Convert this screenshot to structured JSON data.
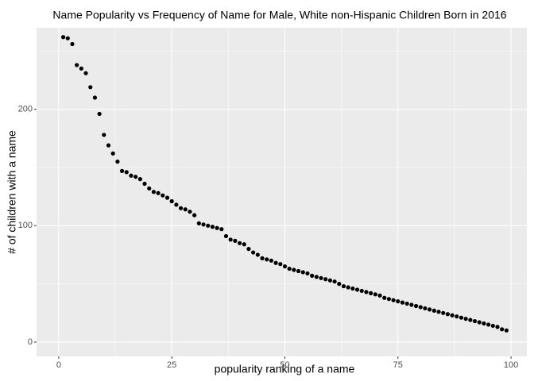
{
  "chart_data": {
    "type": "scatter",
    "title": "Name Popularity vs Frequency of Name for Male, White non-Hispanic Children Born in 2016",
    "x_label": "popularity ranking of a name",
    "y_label": "# of children with a name",
    "color": "#000000",
    "grid": true,
    "xlim": [
      -4.9,
      103.5
    ],
    "ylim": [
      -12.3,
      270
    ],
    "xticks": [
      0,
      25,
      50,
      75,
      100
    ],
    "yticks": [
      0,
      100,
      200
    ],
    "minor_xticks": [
      12.5,
      37.5,
      62.5,
      87.5
    ],
    "minor_yticks": [
      50,
      150,
      250
    ],
    "x": [
      1,
      2,
      3,
      4,
      5,
      6,
      7,
      8,
      9,
      10,
      11,
      12,
      13,
      14,
      15,
      16,
      17,
      18,
      19,
      20,
      21,
      22,
      23,
      24,
      25,
      26,
      27,
      28,
      29,
      30,
      31,
      32,
      33,
      34,
      35,
      36,
      37,
      38,
      39,
      40,
      41,
      42,
      43,
      44,
      45,
      46,
      47,
      48,
      49,
      50,
      51,
      52,
      53,
      54,
      55,
      56,
      57,
      58,
      59,
      60,
      61,
      62,
      63,
      64,
      65,
      66,
      67,
      68,
      69,
      70,
      71,
      72,
      73,
      74,
      75,
      76,
      77,
      78,
      79,
      80,
      81,
      82,
      83,
      84,
      85,
      86,
      87,
      88,
      89,
      90,
      91,
      92,
      93,
      94,
      95,
      96,
      97,
      98,
      99
    ],
    "values": [
      262,
      261,
      256,
      238,
      235,
      231,
      219,
      210,
      196,
      178,
      169,
      162,
      155,
      147,
      146,
      143,
      142,
      140,
      136,
      132,
      129,
      128,
      126,
      124,
      121,
      118,
      115,
      114,
      112,
      109,
      102,
      101,
      100,
      99,
      98,
      97,
      91,
      88,
      87,
      85,
      84,
      80,
      77,
      75,
      72,
      71,
      70,
      68,
      67,
      65,
      63,
      62,
      61,
      60,
      59,
      57,
      56,
      55,
      54,
      53,
      52,
      50,
      48,
      47,
      46,
      45,
      44,
      43,
      42,
      41,
      40,
      38,
      37,
      36,
      35,
      34,
      33,
      32,
      31,
      30,
      29,
      28,
      27,
      26,
      25,
      24,
      23,
      22,
      21,
      20,
      19,
      18,
      17,
      16,
      15,
      14,
      13,
      11,
      10
    ]
  }
}
